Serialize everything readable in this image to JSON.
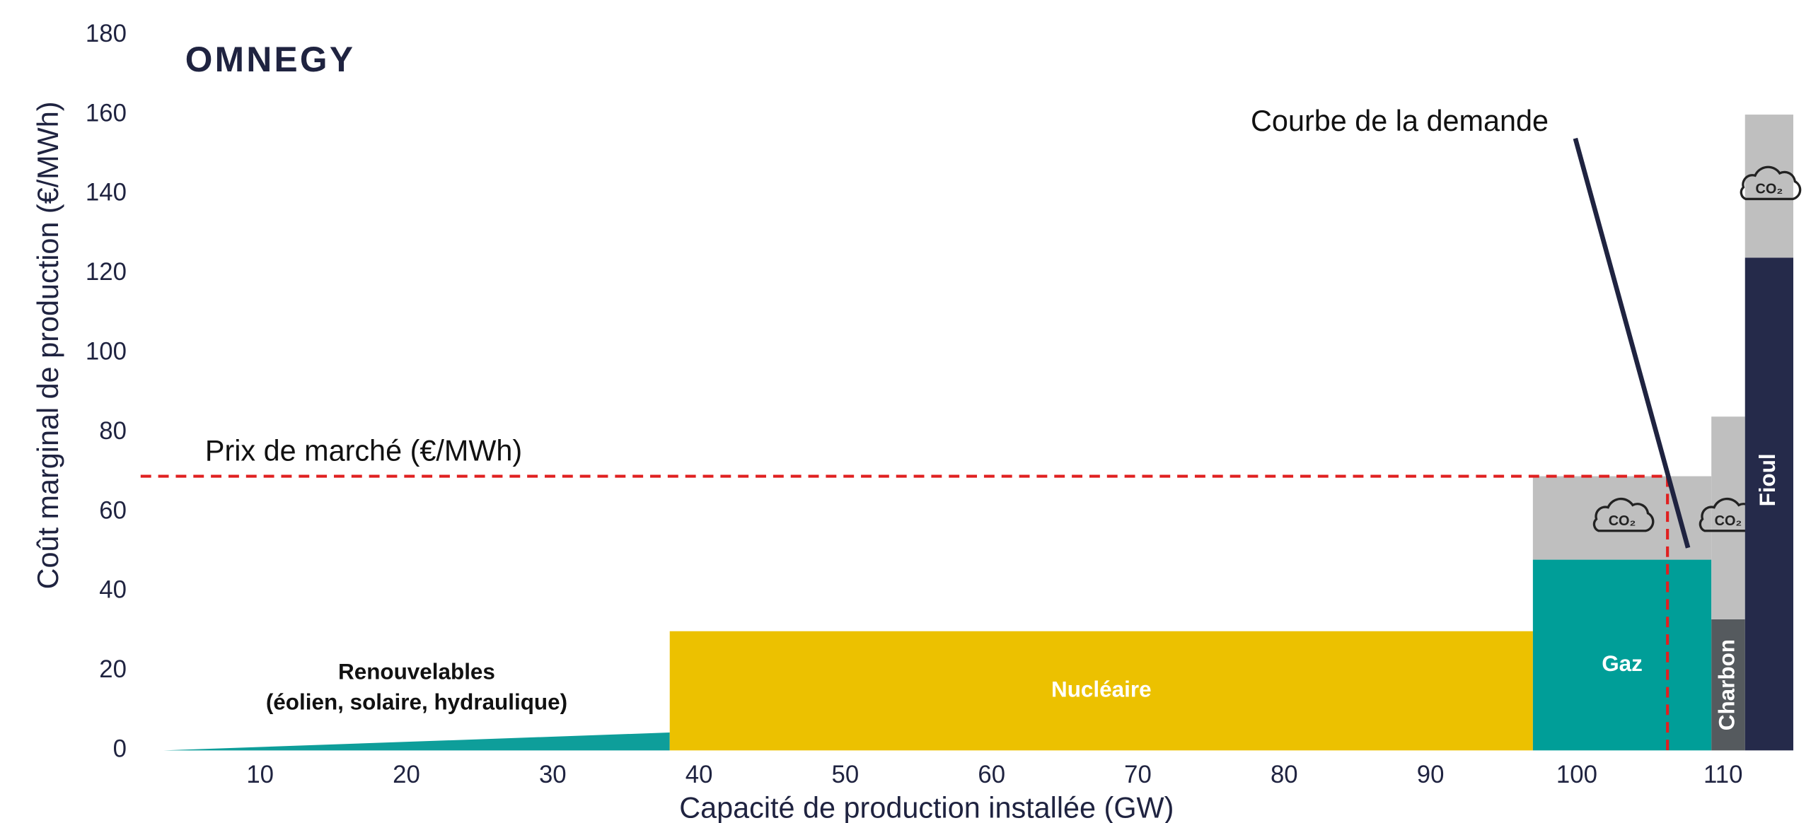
{
  "chart_data": {
    "type": "merit-order",
    "logo": "OMNEGY",
    "xlabel": "Capacité de production installée (GW)",
    "ylabel": "Coût marginal de production (€/MWh)",
    "xlim": [
      0,
      115
    ],
    "ylim": [
      0,
      180
    ],
    "xticks": [
      10,
      20,
      30,
      40,
      50,
      60,
      70,
      80,
      90,
      100,
      110
    ],
    "yticks": [
      0,
      20,
      40,
      60,
      80,
      100,
      120,
      140,
      160,
      180
    ],
    "co2_icon": "CO₂",
    "co2_color": "#bfbfbf",
    "blocks": [
      {
        "label": [
          "Renouvelables",
          "(éolien, solaire, hydraulique)"
        ],
        "shape": "ramp",
        "x": [
          3.4,
          38
        ],
        "values": [
          0,
          4.5
        ],
        "color": "#0e9e9a"
      },
      {
        "label": "Nucléaire",
        "x": [
          38,
          97
        ],
        "values": [
          30
        ],
        "color": "#ecc100"
      },
      {
        "label": "Gaz",
        "x": [
          97,
          109.2
        ],
        "values": [
          48,
          21
        ],
        "color": "#009e98"
      },
      {
        "label": "Charbon",
        "x": [
          109.2,
          111.5
        ],
        "values": [
          33,
          51
        ],
        "color": "#555a5e",
        "vertical": true
      },
      {
        "label": "Fioul",
        "x": [
          111.5,
          114.8
        ],
        "values": [
          124,
          36
        ],
        "color": "#252a4a",
        "vertical": true
      }
    ],
    "market": {
      "label": "Prix de marché (€/MWh)",
      "value": 69,
      "x": 106.2,
      "color": "#e02020"
    },
    "demand": {
      "label": "Courbe de la demande",
      "x": [
        99.9,
        107.6
      ],
      "y": [
        154,
        51
      ],
      "color": "#1f2340"
    }
  }
}
